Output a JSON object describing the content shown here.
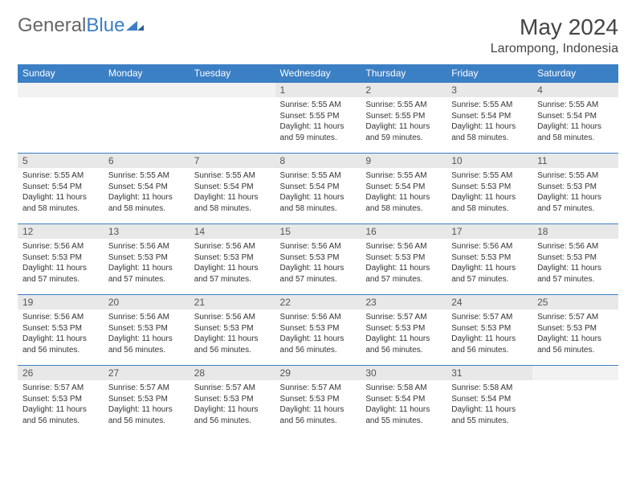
{
  "brand": {
    "part1": "General",
    "part2": "Blue"
  },
  "title": "May 2024",
  "location": "Larompong, Indonesia",
  "colors": {
    "header_bg": "#3b7fc4",
    "header_text": "#ffffff",
    "daynum_bg": "#e8e8e8",
    "text": "#333333",
    "brand_gray": "#666666",
    "brand_blue": "#3b7fc4"
  },
  "typography": {
    "month_title_fontsize": 28,
    "location_fontsize": 16,
    "weekday_fontsize": 12,
    "daynum_fontsize": 12,
    "info_fontsize": 10
  },
  "weekdays": [
    "Sunday",
    "Monday",
    "Tuesday",
    "Wednesday",
    "Thursday",
    "Friday",
    "Saturday"
  ],
  "weeks": [
    [
      null,
      null,
      null,
      {
        "n": "1",
        "sunrise": "5:55 AM",
        "sunset": "5:55 PM",
        "daylight": "11 hours and 59 minutes."
      },
      {
        "n": "2",
        "sunrise": "5:55 AM",
        "sunset": "5:55 PM",
        "daylight": "11 hours and 59 minutes."
      },
      {
        "n": "3",
        "sunrise": "5:55 AM",
        "sunset": "5:54 PM",
        "daylight": "11 hours and 58 minutes."
      },
      {
        "n": "4",
        "sunrise": "5:55 AM",
        "sunset": "5:54 PM",
        "daylight": "11 hours and 58 minutes."
      }
    ],
    [
      {
        "n": "5",
        "sunrise": "5:55 AM",
        "sunset": "5:54 PM",
        "daylight": "11 hours and 58 minutes."
      },
      {
        "n": "6",
        "sunrise": "5:55 AM",
        "sunset": "5:54 PM",
        "daylight": "11 hours and 58 minutes."
      },
      {
        "n": "7",
        "sunrise": "5:55 AM",
        "sunset": "5:54 PM",
        "daylight": "11 hours and 58 minutes."
      },
      {
        "n": "8",
        "sunrise": "5:55 AM",
        "sunset": "5:54 PM",
        "daylight": "11 hours and 58 minutes."
      },
      {
        "n": "9",
        "sunrise": "5:55 AM",
        "sunset": "5:54 PM",
        "daylight": "11 hours and 58 minutes."
      },
      {
        "n": "10",
        "sunrise": "5:55 AM",
        "sunset": "5:53 PM",
        "daylight": "11 hours and 58 minutes."
      },
      {
        "n": "11",
        "sunrise": "5:55 AM",
        "sunset": "5:53 PM",
        "daylight": "11 hours and 57 minutes."
      }
    ],
    [
      {
        "n": "12",
        "sunrise": "5:56 AM",
        "sunset": "5:53 PM",
        "daylight": "11 hours and 57 minutes."
      },
      {
        "n": "13",
        "sunrise": "5:56 AM",
        "sunset": "5:53 PM",
        "daylight": "11 hours and 57 minutes."
      },
      {
        "n": "14",
        "sunrise": "5:56 AM",
        "sunset": "5:53 PM",
        "daylight": "11 hours and 57 minutes."
      },
      {
        "n": "15",
        "sunrise": "5:56 AM",
        "sunset": "5:53 PM",
        "daylight": "11 hours and 57 minutes."
      },
      {
        "n": "16",
        "sunrise": "5:56 AM",
        "sunset": "5:53 PM",
        "daylight": "11 hours and 57 minutes."
      },
      {
        "n": "17",
        "sunrise": "5:56 AM",
        "sunset": "5:53 PM",
        "daylight": "11 hours and 57 minutes."
      },
      {
        "n": "18",
        "sunrise": "5:56 AM",
        "sunset": "5:53 PM",
        "daylight": "11 hours and 57 minutes."
      }
    ],
    [
      {
        "n": "19",
        "sunrise": "5:56 AM",
        "sunset": "5:53 PM",
        "daylight": "11 hours and 56 minutes."
      },
      {
        "n": "20",
        "sunrise": "5:56 AM",
        "sunset": "5:53 PM",
        "daylight": "11 hours and 56 minutes."
      },
      {
        "n": "21",
        "sunrise": "5:56 AM",
        "sunset": "5:53 PM",
        "daylight": "11 hours and 56 minutes."
      },
      {
        "n": "22",
        "sunrise": "5:56 AM",
        "sunset": "5:53 PM",
        "daylight": "11 hours and 56 minutes."
      },
      {
        "n": "23",
        "sunrise": "5:57 AM",
        "sunset": "5:53 PM",
        "daylight": "11 hours and 56 minutes."
      },
      {
        "n": "24",
        "sunrise": "5:57 AM",
        "sunset": "5:53 PM",
        "daylight": "11 hours and 56 minutes."
      },
      {
        "n": "25",
        "sunrise": "5:57 AM",
        "sunset": "5:53 PM",
        "daylight": "11 hours and 56 minutes."
      }
    ],
    [
      {
        "n": "26",
        "sunrise": "5:57 AM",
        "sunset": "5:53 PM",
        "daylight": "11 hours and 56 minutes."
      },
      {
        "n": "27",
        "sunrise": "5:57 AM",
        "sunset": "5:53 PM",
        "daylight": "11 hours and 56 minutes."
      },
      {
        "n": "28",
        "sunrise": "5:57 AM",
        "sunset": "5:53 PM",
        "daylight": "11 hours and 56 minutes."
      },
      {
        "n": "29",
        "sunrise": "5:57 AM",
        "sunset": "5:53 PM",
        "daylight": "11 hours and 56 minutes."
      },
      {
        "n": "30",
        "sunrise": "5:58 AM",
        "sunset": "5:54 PM",
        "daylight": "11 hours and 55 minutes."
      },
      {
        "n": "31",
        "sunrise": "5:58 AM",
        "sunset": "5:54 PM",
        "daylight": "11 hours and 55 minutes."
      },
      null
    ]
  ],
  "labels": {
    "sunrise": "Sunrise:",
    "sunset": "Sunset:",
    "daylight": "Daylight:"
  }
}
